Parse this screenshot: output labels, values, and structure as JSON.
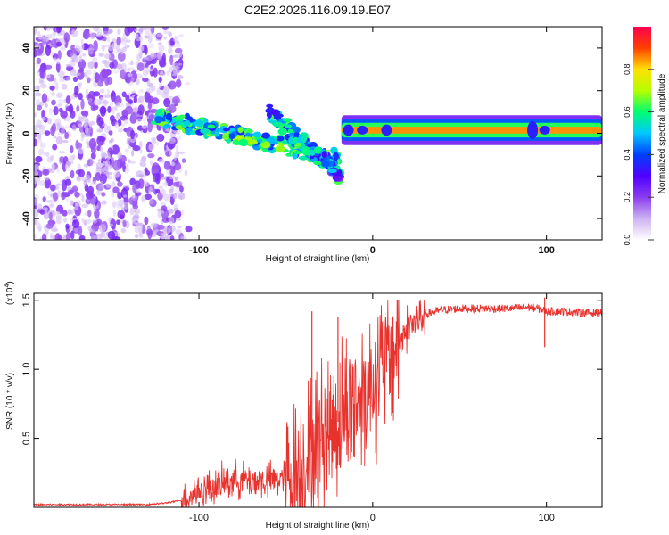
{
  "title": "C2E2.2026.116.09.19.E07",
  "chart_data": [
    {
      "type": "heatmap",
      "name": "spectrogram",
      "xlabel": "Height of straight line (km)",
      "ylabel": "Frequency (Hz)",
      "xlim": [
        -195,
        132
      ],
      "ylim": [
        -50,
        50
      ],
      "xticks": [
        -100,
        0,
        100
      ],
      "yticks": [
        -40,
        -20,
        0,
        20,
        40
      ],
      "colorbar": {
        "label": "Normalized spectral amplitude",
        "range": [
          0,
          1
        ],
        "ticks": [
          0.0,
          0.2,
          0.4,
          0.6,
          0.8
        ],
        "colors": [
          "#ffffff",
          "#cdb2f2",
          "#8b3cf0",
          "#5000ff",
          "#0040ff",
          "#00c8ff",
          "#00ff70",
          "#b4ff00",
          "#ffe000",
          "#ff4000",
          "#ff0050"
        ]
      },
      "description_regions": [
        {
          "name": "noise region",
          "x_range": [
            -195,
            -110
          ],
          "freq_range": [
            -50,
            50
          ],
          "level": 0.15
        },
        {
          "name": "tone onset",
          "x_range": [
            -125,
            -20
          ],
          "freq_start": 8,
          "freq_end": -12,
          "level": 0.35
        },
        {
          "name": "secondary branch",
          "x_range": [
            -60,
            -18
          ],
          "freq_start": 10,
          "freq_end": -20,
          "level": 0.3
        },
        {
          "name": "steady tone",
          "x_range": [
            -18,
            132
          ],
          "freq_center": 1.5,
          "level": 0.75
        }
      ]
    },
    {
      "type": "line",
      "name": "snr",
      "xlabel": "Height of straight line (km)",
      "ylabel": "SNR (10 * v/v)",
      "yscale_label": "(x10",
      "yscale_exp": "4",
      "xlim": [
        -195,
        132
      ],
      "ylim": [
        0,
        1.55
      ],
      "xticks": [
        -100,
        0,
        100
      ],
      "yticks": [
        0.5,
        1.0,
        1.5
      ],
      "series": [
        {
          "name": "SNR",
          "color": "#e8322e",
          "x": [
            -195,
            -150,
            -130,
            -120,
            -110,
            -100,
            -90,
            -80,
            -70,
            -60,
            -50,
            -45,
            -40,
            -35,
            -30,
            -25,
            -20,
            -15,
            -10,
            -5,
            0,
            5,
            10,
            15,
            20,
            25,
            30,
            40,
            50,
            60,
            70,
            80,
            90,
            95,
            100,
            110,
            120,
            132
          ],
          "values": [
            0.02,
            0.02,
            0.02,
            0.03,
            0.05,
            0.12,
            0.16,
            0.2,
            0.19,
            0.19,
            0.22,
            0.24,
            0.32,
            0.4,
            0.52,
            0.58,
            0.62,
            0.72,
            0.78,
            0.85,
            0.92,
            1.0,
            1.1,
            1.2,
            1.3,
            1.35,
            1.4,
            1.43,
            1.44,
            1.44,
            1.44,
            1.44,
            1.45,
            1.44,
            1.42,
            1.42,
            1.41,
            1.41
          ],
          "annotations": [
            {
              "x": 99,
              "value": 1.52,
              "kind": "spike"
            },
            {
              "x": 99,
              "value": 1.16,
              "kind": "dip"
            },
            {
              "x": -35,
              "value": 1.42,
              "kind": "spike"
            },
            {
              "x": -20,
              "value": 1.38,
              "kind": "spike"
            }
          ]
        }
      ]
    }
  ]
}
